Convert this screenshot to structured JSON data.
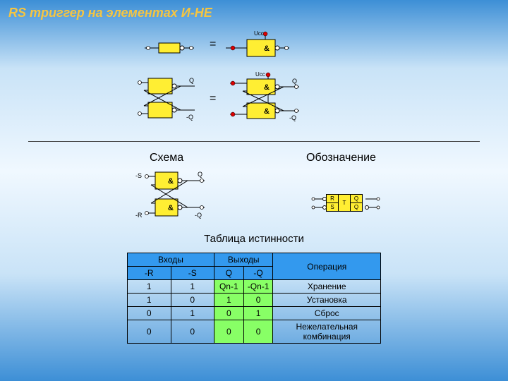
{
  "title": "RS триггер на элементах И-НЕ",
  "eq": "=",
  "labels": {
    "ucc": "Ucc",
    "q": "Q",
    "nq": "-Q",
    "ns": "-S",
    "nr": "-R",
    "r": "R",
    "s": "S",
    "t": "T",
    "amp": "&"
  },
  "headings": {
    "schema": "Схема",
    "symbol": "Обозначение",
    "truth": "Таблица истинности"
  },
  "colors": {
    "gate_fill": "#ffee33",
    "gate_stroke": "#000000",
    "red_dot": "#dd0000",
    "header_bg": "#3399ee",
    "out_col_bg": "#88ff66",
    "row_bg": "#ffffff",
    "border": "#000000"
  },
  "truth_table": {
    "header_inputs": "Входы",
    "header_outputs": "Выходы",
    "header_op": "Операция",
    "sub_in": [
      "-R",
      "-S"
    ],
    "sub_out": [
      "Q",
      "-Q"
    ],
    "rows": [
      {
        "in": [
          "1",
          "1"
        ],
        "out": [
          "Qn-1",
          "-Qn-1"
        ],
        "op": "Хранение"
      },
      {
        "in": [
          "1",
          "0"
        ],
        "out": [
          "1",
          "0"
        ],
        "op": "Установка"
      },
      {
        "in": [
          "0",
          "1"
        ],
        "out": [
          "0",
          "1"
        ],
        "op": "Сброс"
      },
      {
        "in": [
          "0",
          "0"
        ],
        "out": [
          "0",
          "0"
        ],
        "op": "Нежелательная комбинация"
      }
    ]
  },
  "styling": {
    "title_color": "#f5c542",
    "title_fontsize": 18,
    "title_italic": true,
    "divider_color": "#444444",
    "cell_font_size": 12,
    "col_widths": {
      "in": 80,
      "out": 50,
      "op": 180
    }
  }
}
